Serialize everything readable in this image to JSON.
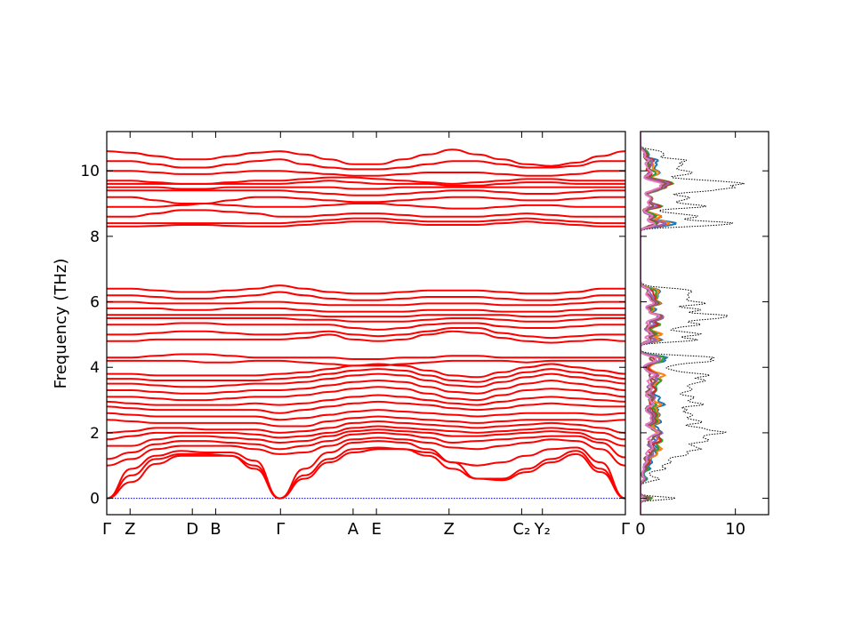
{
  "chart_data": [
    {
      "type": "line",
      "ylabel": "Frequency (THz)",
      "ylim": [
        -0.5,
        11.2
      ],
      "yticks": [
        0,
        2,
        4,
        6,
        8,
        10
      ],
      "xticks": [
        {
          "label": "Γ",
          "pos": 0.0
        },
        {
          "label": "Z",
          "pos": 0.045
        },
        {
          "label": "D",
          "pos": 0.165
        },
        {
          "label": "B",
          "pos": 0.21
        },
        {
          "label": "Γ",
          "pos": 0.335
        },
        {
          "label": "A",
          "pos": 0.475
        },
        {
          "label": "E",
          "pos": 0.52
        },
        {
          "label": "Z",
          "pos": 0.66
        },
        {
          "label": "C₂",
          "pos": 0.8
        },
        {
          "label": "Y₂",
          "pos": 0.84
        },
        {
          "label": "Γ",
          "pos": 1.0
        }
      ],
      "band_color": "#ff0000",
      "zero_line_color": "#0000cc",
      "bands": [
        [
          0.0,
          0.5,
          1.05,
          1.3,
          1.3,
          1.3,
          0.9,
          0.0,
          0.6,
          1.1,
          1.4,
          1.5,
          1.5,
          1.4,
          1.1,
          0.6,
          0.55,
          0.8,
          1.1,
          1.35,
          0.8,
          0.0
        ],
        [
          0.0,
          0.7,
          1.2,
          1.35,
          1.35,
          1.3,
          1.0,
          0.0,
          0.7,
          1.2,
          1.5,
          1.55,
          1.5,
          1.3,
          0.9,
          0.6,
          0.6,
          0.9,
          1.2,
          1.45,
          0.9,
          0.0
        ],
        [
          0.0,
          0.9,
          1.3,
          1.45,
          1.4,
          1.4,
          1.15,
          0.0,
          0.9,
          1.4,
          1.7,
          1.75,
          1.7,
          1.5,
          1.1,
          1.0,
          1.1,
          1.3,
          1.5,
          1.55,
          1.1,
          0.0
        ],
        [
          1.0,
          1.2,
          1.5,
          1.6,
          1.6,
          1.6,
          1.5,
          1.35,
          1.4,
          1.6,
          1.8,
          1.85,
          1.8,
          1.7,
          1.55,
          1.5,
          1.6,
          1.7,
          1.8,
          1.75,
          1.5,
          1.0
        ],
        [
          1.2,
          1.4,
          1.65,
          1.75,
          1.75,
          1.7,
          1.65,
          1.5,
          1.6,
          1.75,
          1.95,
          2.0,
          1.95,
          1.85,
          1.7,
          1.75,
          1.8,
          1.85,
          1.9,
          1.9,
          1.7,
          1.25
        ],
        [
          1.6,
          1.6,
          1.8,
          1.9,
          1.9,
          1.85,
          1.8,
          1.7,
          1.75,
          1.9,
          2.05,
          2.1,
          2.05,
          2.0,
          1.9,
          1.9,
          1.95,
          2.0,
          2.05,
          2.0,
          1.8,
          1.6
        ],
        [
          1.8,
          1.9,
          2.0,
          2.0,
          2.0,
          2.0,
          1.95,
          1.85,
          1.9,
          2.0,
          2.15,
          2.2,
          2.15,
          2.1,
          2.05,
          2.0,
          2.05,
          2.1,
          2.15,
          2.1,
          2.0,
          1.8
        ],
        [
          2.0,
          2.05,
          2.15,
          2.15,
          2.1,
          2.1,
          2.1,
          2.0,
          2.05,
          2.15,
          2.3,
          2.35,
          2.3,
          2.25,
          2.2,
          2.15,
          2.2,
          2.25,
          2.3,
          2.25,
          2.15,
          2.0
        ],
        [
          2.4,
          2.35,
          2.3,
          2.3,
          2.3,
          2.3,
          2.3,
          2.2,
          2.2,
          2.35,
          2.45,
          2.5,
          2.45,
          2.4,
          2.35,
          2.3,
          2.35,
          2.4,
          2.4,
          2.4,
          2.35,
          2.4
        ],
        [
          2.6,
          2.55,
          2.5,
          2.5,
          2.5,
          2.5,
          2.5,
          2.4,
          2.45,
          2.55,
          2.65,
          2.7,
          2.65,
          2.6,
          2.55,
          2.5,
          2.55,
          2.6,
          2.6,
          2.6,
          2.55,
          2.6
        ],
        [
          2.8,
          2.75,
          2.7,
          2.7,
          2.7,
          2.7,
          2.7,
          2.6,
          2.7,
          2.8,
          2.9,
          2.95,
          2.9,
          2.85,
          2.75,
          2.7,
          2.75,
          2.85,
          2.9,
          2.85,
          2.8,
          2.8
        ],
        [
          2.95,
          2.9,
          2.85,
          2.85,
          2.85,
          2.85,
          2.9,
          2.85,
          2.9,
          3.0,
          3.1,
          3.15,
          3.1,
          3.0,
          2.9,
          2.85,
          2.95,
          3.05,
          3.1,
          3.05,
          3.0,
          2.95
        ],
        [
          3.1,
          3.1,
          3.05,
          3.0,
          3.0,
          3.05,
          3.1,
          3.1,
          3.15,
          3.25,
          3.35,
          3.4,
          3.35,
          3.2,
          3.05,
          3.0,
          3.15,
          3.3,
          3.35,
          3.3,
          3.2,
          3.1
        ],
        [
          3.3,
          3.3,
          3.25,
          3.2,
          3.2,
          3.25,
          3.3,
          3.3,
          3.35,
          3.45,
          3.55,
          3.6,
          3.55,
          3.4,
          3.25,
          3.2,
          3.35,
          3.5,
          3.6,
          3.5,
          3.4,
          3.3
        ],
        [
          3.5,
          3.5,
          3.45,
          3.4,
          3.4,
          3.45,
          3.5,
          3.5,
          3.55,
          3.65,
          3.75,
          3.8,
          3.75,
          3.6,
          3.45,
          3.4,
          3.55,
          3.7,
          3.8,
          3.7,
          3.6,
          3.5
        ],
        [
          3.65,
          3.65,
          3.6,
          3.6,
          3.6,
          3.6,
          3.6,
          3.65,
          3.7,
          3.8,
          3.9,
          3.95,
          3.9,
          3.75,
          3.6,
          3.55,
          3.7,
          3.85,
          3.95,
          3.85,
          3.75,
          3.65
        ],
        [
          3.8,
          3.8,
          3.75,
          3.75,
          3.75,
          3.75,
          3.75,
          3.8,
          3.85,
          3.95,
          4.05,
          4.1,
          4.05,
          3.9,
          3.75,
          3.7,
          3.85,
          4.0,
          4.1,
          4.0,
          3.9,
          3.8
        ],
        [
          4.2,
          4.2,
          4.2,
          4.2,
          4.15,
          4.15,
          4.2,
          4.2,
          4.15,
          4.1,
          4.05,
          4.05,
          4.1,
          4.15,
          4.2,
          4.2,
          4.2,
          4.15,
          4.2,
          4.2,
          4.2,
          4.2
        ],
        [
          4.3,
          4.3,
          4.35,
          4.4,
          4.4,
          4.35,
          4.3,
          4.3,
          4.3,
          4.3,
          4.25,
          4.25,
          4.3,
          4.3,
          4.35,
          4.35,
          4.3,
          4.3,
          4.3,
          4.3,
          4.3,
          4.3
        ],
        [
          4.8,
          4.8,
          4.85,
          4.85,
          4.85,
          4.85,
          4.85,
          4.85,
          4.9,
          5.0,
          4.85,
          4.8,
          4.85,
          5.0,
          5.1,
          5.05,
          4.9,
          4.8,
          4.75,
          4.8,
          4.85,
          4.8
        ],
        [
          5.0,
          5.0,
          5.05,
          5.1,
          5.1,
          5.05,
          5.0,
          5.0,
          5.05,
          5.1,
          5.0,
          4.95,
          5.0,
          5.1,
          5.2,
          5.2,
          5.05,
          4.95,
          4.9,
          4.95,
          5.0,
          5.0
        ],
        [
          5.3,
          5.3,
          5.3,
          5.35,
          5.35,
          5.3,
          5.3,
          5.3,
          5.3,
          5.3,
          5.2,
          5.15,
          5.2,
          5.3,
          5.35,
          5.35,
          5.25,
          5.2,
          5.2,
          5.25,
          5.3,
          5.3
        ],
        [
          5.5,
          5.5,
          5.5,
          5.5,
          5.5,
          5.5,
          5.5,
          5.5,
          5.45,
          5.45,
          5.4,
          5.4,
          5.4,
          5.45,
          5.5,
          5.5,
          5.45,
          5.4,
          5.4,
          5.45,
          5.5,
          5.5
        ],
        [
          5.6,
          5.6,
          5.6,
          5.6,
          5.6,
          5.6,
          5.6,
          5.6,
          5.6,
          5.55,
          5.55,
          5.55,
          5.55,
          5.6,
          5.6,
          5.6,
          5.6,
          5.55,
          5.55,
          5.6,
          5.6,
          5.6
        ],
        [
          5.8,
          5.8,
          5.8,
          5.75,
          5.75,
          5.8,
          5.8,
          5.8,
          5.75,
          5.7,
          5.7,
          5.7,
          5.7,
          5.75,
          5.75,
          5.75,
          5.7,
          5.7,
          5.7,
          5.75,
          5.8,
          5.8
        ],
        [
          6.0,
          6.0,
          5.95,
          5.95,
          5.95,
          5.95,
          6.0,
          6.0,
          5.95,
          5.9,
          5.9,
          5.9,
          5.9,
          5.95,
          5.95,
          5.95,
          5.9,
          5.9,
          5.9,
          5.95,
          6.0,
          6.0
        ],
        [
          6.2,
          6.2,
          6.15,
          6.1,
          6.1,
          6.15,
          6.2,
          6.3,
          6.2,
          6.1,
          6.05,
          6.05,
          6.1,
          6.15,
          6.15,
          6.15,
          6.1,
          6.05,
          6.05,
          6.1,
          6.2,
          6.2
        ],
        [
          6.4,
          6.4,
          6.35,
          6.3,
          6.3,
          6.35,
          6.4,
          6.5,
          6.4,
          6.3,
          6.25,
          6.25,
          6.3,
          6.35,
          6.35,
          6.35,
          6.3,
          6.25,
          6.25,
          6.3,
          6.4,
          6.4
        ],
        [
          8.3,
          8.3,
          8.32,
          8.35,
          8.35,
          8.32,
          8.3,
          8.3,
          8.35,
          8.4,
          8.45,
          8.45,
          8.4,
          8.35,
          8.35,
          8.35,
          8.4,
          8.45,
          8.4,
          8.35,
          8.3,
          8.3
        ],
        [
          8.4,
          8.4,
          8.4,
          8.4,
          8.4,
          8.4,
          8.4,
          8.4,
          8.45,
          8.5,
          8.55,
          8.55,
          8.5,
          8.45,
          8.45,
          8.45,
          8.5,
          8.55,
          8.5,
          8.45,
          8.4,
          8.4
        ],
        [
          8.6,
          8.6,
          8.7,
          8.8,
          8.8,
          8.75,
          8.7,
          8.6,
          8.6,
          8.65,
          8.7,
          8.7,
          8.65,
          8.6,
          8.6,
          8.6,
          8.65,
          8.7,
          8.65,
          8.6,
          8.6,
          8.6
        ],
        [
          8.9,
          8.9,
          8.9,
          8.95,
          9.0,
          8.95,
          8.9,
          8.9,
          8.9,
          8.95,
          9.0,
          9.0,
          8.95,
          8.9,
          8.85,
          8.85,
          8.9,
          8.95,
          8.95,
          8.9,
          8.9,
          8.9
        ],
        [
          9.2,
          9.2,
          9.1,
          9.0,
          9.0,
          9.1,
          9.2,
          9.2,
          9.15,
          9.1,
          9.05,
          9.05,
          9.1,
          9.15,
          9.2,
          9.2,
          9.15,
          9.1,
          9.1,
          9.15,
          9.2,
          9.2
        ],
        [
          9.4,
          9.4,
          9.4,
          9.4,
          9.4,
          9.4,
          9.4,
          9.4,
          9.35,
          9.3,
          9.25,
          9.25,
          9.3,
          9.35,
          9.4,
          9.4,
          9.35,
          9.3,
          9.3,
          9.35,
          9.4,
          9.4
        ],
        [
          9.5,
          9.5,
          9.5,
          9.45,
          9.45,
          9.5,
          9.5,
          9.5,
          9.5,
          9.5,
          9.45,
          9.45,
          9.5,
          9.5,
          9.5,
          9.5,
          9.5,
          9.5,
          9.5,
          9.5,
          9.5,
          9.5
        ],
        [
          9.6,
          9.6,
          9.6,
          9.6,
          9.6,
          9.6,
          9.6,
          9.6,
          9.65,
          9.7,
          9.65,
          9.6,
          9.6,
          9.6,
          9.55,
          9.55,
          9.6,
          9.65,
          9.65,
          9.6,
          9.6,
          9.6
        ],
        [
          9.7,
          9.7,
          9.65,
          9.6,
          9.6,
          9.65,
          9.7,
          9.7,
          9.75,
          9.8,
          9.8,
          9.75,
          9.7,
          9.65,
          9.6,
          9.65,
          9.7,
          9.75,
          9.75,
          9.7,
          9.7,
          9.7
        ],
        [
          10.0,
          10.0,
          9.95,
          9.9,
          9.9,
          9.95,
          10.0,
          10.0,
          9.95,
          9.9,
          9.85,
          9.85,
          9.9,
          9.95,
          9.95,
          9.95,
          9.9,
          9.85,
          9.85,
          9.9,
          10.0,
          10.0
        ],
        [
          10.3,
          10.3,
          10.2,
          10.1,
          10.1,
          10.2,
          10.3,
          10.35,
          10.2,
          10.1,
          10.05,
          10.05,
          10.1,
          10.2,
          10.3,
          10.3,
          10.2,
          10.1,
          10.1,
          10.15,
          10.3,
          10.3
        ],
        [
          10.6,
          10.55,
          10.45,
          10.35,
          10.35,
          10.45,
          10.55,
          10.6,
          10.5,
          10.35,
          10.2,
          10.2,
          10.35,
          10.5,
          10.65,
          10.5,
          10.35,
          10.2,
          10.15,
          10.25,
          10.45,
          10.6
        ]
      ]
    },
    {
      "type": "line",
      "xlabel": "",
      "xticks": [
        0,
        10
      ],
      "xlim": [
        0,
        13.5
      ],
      "ylim": [
        -0.5,
        11.2
      ],
      "total_color": "#000000",
      "total_style": "dotted",
      "series_colors": [
        "#1f77b4",
        "#ff7f0e",
        "#2ca02c",
        "#d62728",
        "#9467bd",
        "#8c564b",
        "#e377c2"
      ]
    }
  ]
}
